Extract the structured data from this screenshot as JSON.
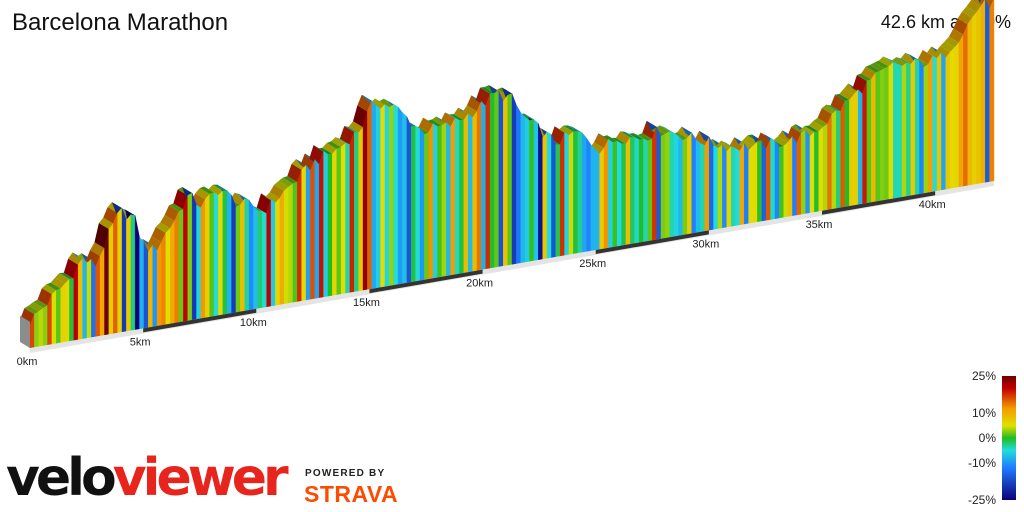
{
  "header": {
    "title": "Barcelona Marathon",
    "summary": "42.6 km at 0.0%"
  },
  "branding": {
    "logo_left": "velo",
    "logo_right": "viewer",
    "powered_by": "POWERED BY",
    "partner": "STRAVA"
  },
  "colors": {
    "velo": "#111111",
    "viewer": "#e8251d",
    "strava": "#fc4c02",
    "km_band_alt": "#333333",
    "baseline": "#e4e4e4"
  },
  "chart_data": {
    "type": "area",
    "title": "Barcelona Marathon",
    "total_distance_km": 42.6,
    "average_gradient_percent": 0.0,
    "x_unit": "km",
    "y_unit": "m",
    "x_ticks": [
      {
        "km": 0,
        "label": "0km"
      },
      {
        "km": 5,
        "label": "5km"
      },
      {
        "km": 10,
        "label": "10km"
      },
      {
        "km": 15,
        "label": "15km"
      },
      {
        "km": 20,
        "label": "20km"
      },
      {
        "km": 25,
        "label": "25km"
      },
      {
        "km": 30,
        "label": "30km"
      },
      {
        "km": 35,
        "label": "35km"
      },
      {
        "km": 40,
        "label": "40km"
      }
    ],
    "elevation_profile": {
      "x": [
        0,
        0.6,
        1.1,
        1.8,
        2.3,
        2.9,
        3.5,
        4.0,
        4.6,
        5.0,
        5.5,
        6.3,
        7.0,
        7.6,
        8.4,
        9.2,
        9.8,
        10.3,
        11.5,
        12.6,
        13.6,
        14.6,
        15.2,
        16.1,
        16.7,
        17.3,
        18.5,
        19.8,
        20.6,
        21.3,
        21.8,
        22.5,
        23.2,
        24.2,
        25.2,
        26.0,
        27.0,
        28.0,
        28.8,
        30.0,
        31.0,
        32.2,
        33.6,
        34.6,
        35.3,
        36.1,
        37.1,
        38.2,
        39.0,
        40.2,
        41.2,
        42.0,
        42.6
      ],
      "y": [
        4,
        10,
        15,
        22,
        30,
        26,
        40,
        50,
        46,
        32,
        28,
        40,
        52,
        46,
        53,
        44,
        42,
        38,
        48,
        58,
        62,
        70,
        82,
        78,
        71,
        64,
        64,
        70,
        76,
        72,
        62,
        55,
        47,
        50,
        40,
        44,
        42,
        44,
        40,
        34,
        30,
        28,
        28,
        30,
        35,
        42,
        50,
        56,
        55,
        55,
        66,
        78,
        78
      ]
    },
    "gradient_legend": {
      "min": -25,
      "max": 25,
      "labels": [
        "25%",
        "10%",
        "0%",
        "-10%",
        "-25%"
      ],
      "ticks": [
        25,
        10,
        0,
        -10,
        -25
      ],
      "stops": [
        {
          "value": 25,
          "color": "#6e0000"
        },
        {
          "value": 20,
          "color": "#c40000"
        },
        {
          "value": 12,
          "color": "#f39a00"
        },
        {
          "value": 5,
          "color": "#e2e000"
        },
        {
          "value": 0,
          "color": "#22bb22"
        },
        {
          "value": -5,
          "color": "#22dddd"
        },
        {
          "value": -12,
          "color": "#1e7cff"
        },
        {
          "value": -25,
          "color": "#10007a"
        }
      ]
    }
  }
}
